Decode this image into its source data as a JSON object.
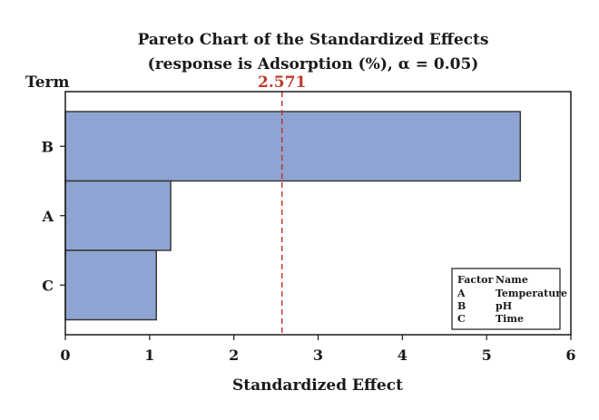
{
  "chart_data": {
    "type": "bar",
    "orientation": "horizontal",
    "title": "Pareto Chart of the Standardized Effects",
    "subtitle": "(response is Adsorption (%), α = 0.05)",
    "ylabel": "Term",
    "xlabel": "Standardized Effect",
    "categories": [
      "B",
      "A",
      "C"
    ],
    "values": [
      5.4,
      1.25,
      1.08
    ],
    "xlim": [
      0,
      6
    ],
    "xticks": [
      "0",
      "1",
      "2",
      "3",
      "4",
      "5",
      "6"
    ],
    "reference_line": {
      "value": 2.571,
      "label": "2.571",
      "color": "#c0392b"
    },
    "bar_color": "#8ea4d2",
    "bar_edge_color": "#3a3a3a",
    "legend": {
      "placement": "bottom-right",
      "header": [
        "Factor",
        "Name"
      ],
      "rows": [
        [
          "A",
          "Temperature"
        ],
        [
          "B",
          "pH"
        ],
        [
          "C",
          "Time"
        ]
      ]
    }
  }
}
